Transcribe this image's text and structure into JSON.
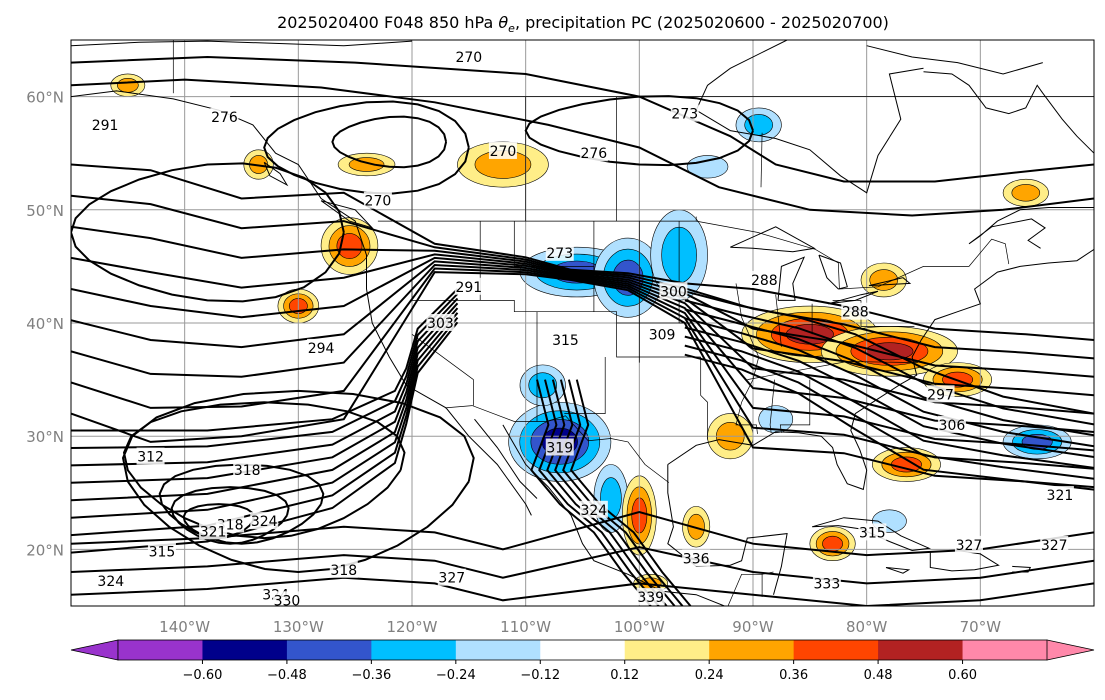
{
  "title": {
    "prefix": "2025020400 F048 850 hPa ",
    "theta": "θ",
    "theta_sub": "e",
    "suffix": ", precipitation PC (2025020600 - 2025020700)"
  },
  "map": {
    "lon_range": [
      -150,
      -60
    ],
    "lat_range": [
      15,
      65
    ],
    "grid": true,
    "lon_ticks": [
      "140°W",
      "130°W",
      "120°W",
      "110°W",
      "100°W",
      "90°W",
      "80°W",
      "70°W"
    ],
    "lat_ticks": [
      "60°N",
      "50°N",
      "40°N",
      "30°N",
      "20°N"
    ]
  },
  "contour_labels": [
    {
      "text": "270",
      "lon": -115,
      "lat": 63.5
    },
    {
      "text": "270",
      "lon": -112,
      "lat": 55.2
    },
    {
      "text": "270",
      "lon": -123,
      "lat": 50.8
    },
    {
      "text": "276",
      "lon": -136.5,
      "lat": 58.2
    },
    {
      "text": "276",
      "lon": -104,
      "lat": 55.0
    },
    {
      "text": "273",
      "lon": -96,
      "lat": 58.5
    },
    {
      "text": "273",
      "lon": -107,
      "lat": 46.2
    },
    {
      "text": "291",
      "lon": -147,
      "lat": 57.5
    },
    {
      "text": "291",
      "lon": -115,
      "lat": 43.2
    },
    {
      "text": "294",
      "lon": -128,
      "lat": 37.8
    },
    {
      "text": "303",
      "lon": -117.5,
      "lat": 40.0
    },
    {
      "text": "315",
      "lon": -106.5,
      "lat": 38.5
    },
    {
      "text": "300",
      "lon": -97,
      "lat": 42.8
    },
    {
      "text": "309",
      "lon": -98,
      "lat": 39.0
    },
    {
      "text": "288",
      "lon": -89,
      "lat": 43.8
    },
    {
      "text": "288",
      "lon": -81,
      "lat": 41.0
    },
    {
      "text": "297",
      "lon": -73.5,
      "lat": 33.7
    },
    {
      "text": "306",
      "lon": -72.5,
      "lat": 31.0
    },
    {
      "text": "312",
      "lon": -143,
      "lat": 28.2
    },
    {
      "text": "318",
      "lon": -134.5,
      "lat": 27.0
    },
    {
      "text": "318",
      "lon": -136,
      "lat": 22.2
    },
    {
      "text": "321",
      "lon": -137.5,
      "lat": 21.6
    },
    {
      "text": "324",
      "lon": -133,
      "lat": 22.5
    },
    {
      "text": "315",
      "lon": -142,
      "lat": 19.8
    },
    {
      "text": "324",
      "lon": -146.5,
      "lat": 17.2
    },
    {
      "text": "318",
      "lon": -126,
      "lat": 18.2
    },
    {
      "text": "327",
      "lon": -116.5,
      "lat": 17.5
    },
    {
      "text": "324",
      "lon": -132,
      "lat": 16.0
    },
    {
      "text": "330",
      "lon": -131,
      "lat": 15.5
    },
    {
      "text": "319",
      "lon": -107,
      "lat": 29.0
    },
    {
      "text": "324",
      "lon": -104,
      "lat": 23.5
    },
    {
      "text": "339",
      "lon": -99,
      "lat": 15.8
    },
    {
      "text": "336",
      "lon": -95,
      "lat": 19.2
    },
    {
      "text": "333",
      "lon": -83.5,
      "lat": 17.0
    },
    {
      "text": "315",
      "lon": -79.5,
      "lat": 21.5
    },
    {
      "text": "327",
      "lon": -71,
      "lat": 20.4
    },
    {
      "text": "327",
      "lon": -63.5,
      "lat": 20.4
    },
    {
      "text": "321",
      "lon": -63,
      "lat": 24.8
    }
  ],
  "precip_blobs": [
    {
      "lon": -107,
      "lat": 29.5,
      "rx": 4.5,
      "ry": 3.5,
      "level": -0.55
    },
    {
      "lon": -105.5,
      "lat": 44.5,
      "rx": 5,
      "ry": 2.2,
      "level": -0.45
    },
    {
      "lon": -101,
      "lat": 44,
      "rx": 3,
      "ry": 3.5,
      "level": -0.4
    },
    {
      "lon": -108.5,
      "lat": 34.5,
      "rx": 2,
      "ry": 1.8,
      "level": -0.3
    },
    {
      "lon": -102.5,
      "lat": 24.5,
      "rx": 1.5,
      "ry": 3,
      "level": -0.3
    },
    {
      "lon": -96.5,
      "lat": 46,
      "rx": 2.5,
      "ry": 4,
      "level": -0.25
    },
    {
      "lon": -89.5,
      "lat": 57.5,
      "rx": 2,
      "ry": 1.5,
      "level": -0.25
    },
    {
      "lon": -94,
      "lat": 53.8,
      "rx": 1.8,
      "ry": 1,
      "level": -0.2
    },
    {
      "lon": -65,
      "lat": 29.5,
      "rx": 3,
      "ry": 1.5,
      "level": -0.4
    },
    {
      "lon": -88,
      "lat": 31.5,
      "rx": 1.5,
      "ry": 1.2,
      "level": -0.2
    },
    {
      "lon": -78,
      "lat": 22.5,
      "rx": 1.5,
      "ry": 1,
      "level": -0.2
    },
    {
      "lon": -125.5,
      "lat": 46.8,
      "rx": 2.5,
      "ry": 2.5,
      "level": 0.42
    },
    {
      "lon": -130,
      "lat": 41.5,
      "rx": 1.8,
      "ry": 1.5,
      "level": 0.4
    },
    {
      "lon": -112,
      "lat": 54,
      "rx": 4,
      "ry": 2,
      "level": 0.3
    },
    {
      "lon": -124,
      "lat": 54,
      "rx": 2.5,
      "ry": 1,
      "level": 0.26
    },
    {
      "lon": -133.5,
      "lat": 54,
      "rx": 1.3,
      "ry": 1.3,
      "level": 0.3
    },
    {
      "lon": -145,
      "lat": 61,
      "rx": 1.5,
      "ry": 1,
      "level": 0.25
    },
    {
      "lon": -85,
      "lat": 39,
      "rx": 6,
      "ry": 2.5,
      "level": 0.5
    },
    {
      "lon": -78,
      "lat": 37.5,
      "rx": 6,
      "ry": 2.2,
      "level": 0.55
    },
    {
      "lon": -72,
      "lat": 35,
      "rx": 3,
      "ry": 1.5,
      "level": 0.38
    },
    {
      "lon": -100,
      "lat": 23,
      "rx": 1.5,
      "ry": 3.5,
      "level": 0.45
    },
    {
      "lon": -92,
      "lat": 30,
      "rx": 2,
      "ry": 2,
      "level": 0.3
    },
    {
      "lon": -83,
      "lat": 20.5,
      "rx": 2,
      "ry": 1.5,
      "level": 0.36
    },
    {
      "lon": -76.5,
      "lat": 27.5,
      "rx": 3,
      "ry": 1.5,
      "level": 0.4
    },
    {
      "lon": -66,
      "lat": 51.5,
      "rx": 2,
      "ry": 1.2,
      "level": 0.28
    },
    {
      "lon": -78.5,
      "lat": 43.8,
      "rx": 2,
      "ry": 1.5,
      "level": 0.35
    },
    {
      "lon": -99,
      "lat": 17,
      "rx": 1.5,
      "ry": 0.8,
      "level": 0.26
    },
    {
      "lon": -95,
      "lat": 22,
      "rx": 1.2,
      "ry": 1.8,
      "level": 0.3
    }
  ],
  "colorbar": {
    "extend": "both",
    "boundaries": [
      -0.72,
      -0.6,
      -0.48,
      -0.36,
      -0.24,
      -0.12,
      0.12,
      0.24,
      0.36,
      0.48,
      0.6,
      0.72
    ],
    "colors": [
      "#9933cc",
      "#00008b",
      "#3355cc",
      "#00bfff",
      "#b0e0ff",
      "#ffffff",
      "#ffee88",
      "#ffa500",
      "#ff4500",
      "#b22222",
      "#ff88aa"
    ],
    "tick_labels": [
      "−0.60",
      "−0.48",
      "−0.36",
      "−0.24",
      "−0.12",
      "0.12",
      "0.24",
      "0.36",
      "0.48",
      "0.60"
    ],
    "tick_values": [
      -0.6,
      -0.48,
      -0.36,
      -0.24,
      -0.12,
      0.12,
      0.24,
      0.36,
      0.48,
      0.6
    ]
  }
}
